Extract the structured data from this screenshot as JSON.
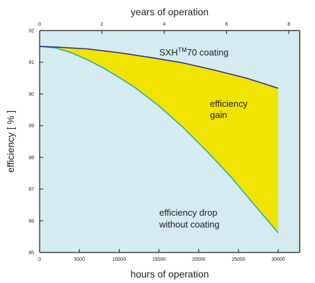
{
  "chart_data": {
    "type": "area",
    "xlabel_bottom": "hours of operation",
    "xlabel_top": "years of operation",
    "ylabel": "efficiency [ % ]",
    "xlim": [
      0,
      32700
    ],
    "ylim": [
      85,
      92
    ],
    "x_top_lim": [
      0,
      8.35
    ],
    "x_ticks": [
      0,
      5000,
      10000,
      15000,
      20000,
      25000,
      30000
    ],
    "x_tick_labels": [
      "0",
      "5000",
      "10000",
      "15000",
      "20000",
      "25000",
      "30000"
    ],
    "x_top_ticks": [
      0,
      2,
      4,
      6,
      8
    ],
    "x_top_tick_labels": [
      "0",
      "2",
      "4",
      "6",
      "8"
    ],
    "y_ticks": [
      85,
      86,
      87,
      88,
      89,
      90,
      91,
      92
    ],
    "y_tick_labels": [
      "85",
      "86",
      "87",
      "88",
      "89",
      "90",
      "91",
      "92"
    ],
    "series": [
      {
        "name": "SXH™70 coating",
        "color": "#2e2f8a",
        "x": [
          0,
          2000,
          6000,
          10000,
          14000,
          18000,
          22000,
          26000,
          30000
        ],
        "y": [
          91.5,
          91.48,
          91.42,
          91.3,
          91.15,
          90.98,
          90.75,
          90.5,
          90.18
        ]
      },
      {
        "name": "efficiency drop without coating",
        "color": "#1fb0c4",
        "x": [
          0,
          2000,
          4000,
          6000,
          8000,
          10000,
          12000,
          15000,
          18000,
          21000,
          24000,
          27000,
          30000
        ],
        "y": [
          91.5,
          91.45,
          91.3,
          91.08,
          90.82,
          90.52,
          90.2,
          89.62,
          88.95,
          88.2,
          87.4,
          86.5,
          85.62
        ]
      }
    ],
    "fill_between": {
      "label": "efficiency gain",
      "color": "#f0e400"
    },
    "annotations": {
      "coating_main": "SXH",
      "coating_sup": "TM",
      "coating_rest": "70 coating",
      "gain_line1": "efficiency",
      "gain_line2": "gain",
      "drop_line1": "efficiency drop",
      "drop_line2": "without coating"
    },
    "grid": false,
    "colors": {
      "plot_background": "#d5ebf1",
      "frame": "#1a1a1a",
      "right_border": "#6b6a2a"
    }
  }
}
